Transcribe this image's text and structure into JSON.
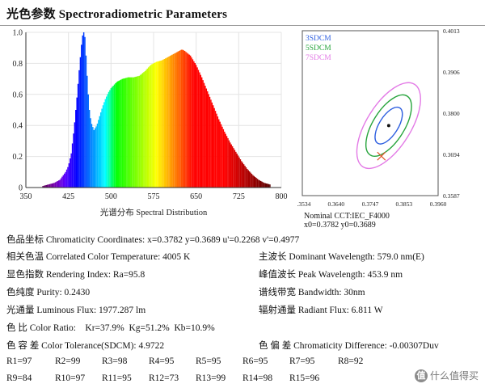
{
  "page": {
    "title": "光色参数 Spectroradiometric Parameters"
  },
  "chart_data": [
    {
      "type": "bar",
      "title": "",
      "xlabel": "光谱分布 Spectral Distribution",
      "ylabel": "",
      "xlim": [
        350,
        800
      ],
      "ylim": [
        0,
        1.0
      ],
      "xticks": [
        "350",
        "425",
        "500",
        "575",
        "650",
        "725",
        "800"
      ],
      "yticks": [
        "0",
        "0.2",
        "0.4",
        "0.6",
        "0.8",
        "1.0"
      ],
      "grid": true,
      "color_map": "wavelength",
      "series": [
        {
          "x": [
            380,
            390,
            400,
            410,
            420,
            425,
            430,
            435,
            440,
            445,
            448,
            450,
            452,
            454,
            456,
            458,
            460,
            462,
            465,
            470,
            475,
            480,
            485,
            490,
            495,
            500,
            510,
            520,
            530,
            540,
            550,
            560,
            570,
            580,
            590,
            600,
            610,
            620,
            625,
            630,
            640,
            650,
            660,
            670,
            680,
            690,
            700,
            710,
            720,
            730,
            740,
            750,
            760,
            770,
            780
          ],
          "values": [
            0.01,
            0.02,
            0.03,
            0.05,
            0.1,
            0.14,
            0.22,
            0.38,
            0.58,
            0.8,
            0.92,
            0.98,
            1.0,
            0.97,
            0.85,
            0.72,
            0.6,
            0.5,
            0.42,
            0.37,
            0.4,
            0.46,
            0.52,
            0.57,
            0.61,
            0.64,
            0.68,
            0.7,
            0.71,
            0.71,
            0.72,
            0.75,
            0.79,
            0.81,
            0.82,
            0.84,
            0.86,
            0.88,
            0.89,
            0.88,
            0.85,
            0.79,
            0.71,
            0.62,
            0.53,
            0.44,
            0.36,
            0.29,
            0.23,
            0.17,
            0.12,
            0.08,
            0.05,
            0.03,
            0.02
          ]
        }
      ]
    },
    {
      "type": "scatter",
      "title": "",
      "x_ticks": [
        "0.3534",
        "0.3640",
        "0.3747",
        "0.3853",
        "0.3960"
      ],
      "y_ticks": [
        "0.4013",
        "0.3906",
        "0.3800",
        "0.3694",
        "0.3587"
      ],
      "xlim": [
        0.3534,
        0.396
      ],
      "ylim": [
        0.3587,
        0.4013
      ],
      "legend": [
        "3SDCM",
        "5SDCM",
        "7SDCM"
      ],
      "legend_position": "top-left",
      "ellipse_colors": [
        "#2e5fe0",
        "#27a43c",
        "#e37be6"
      ],
      "points": [
        {
          "name": "measured",
          "x": 0.3782,
          "y": 0.3689,
          "marker": "cross",
          "color": "#e0552b"
        },
        {
          "name": "nominal",
          "x": 0.3805,
          "y": 0.3768,
          "marker": "dot",
          "color": "#111111"
        }
      ],
      "caption": [
        "Nominal CCT:IEC_F4000",
        "x0=0.3782  y0=0.3689"
      ]
    }
  ],
  "params": {
    "chromaticity": "色品坐标 Chromaticity Coordinates: x=0.3782 y=0.3689 u'=0.2268 v'=0.4977",
    "cct": "相关色温 Correlated Color Temperature: 4005 K",
    "dominant": "主波长 Dominant Wavelength: 579.0 nm(E)",
    "ra": "显色指数 Rendering Index: Ra=95.8",
    "peak": "峰值波长 Peak Wavelength: 453.9 nm",
    "purity": "色纯度 Purity: 0.2430",
    "bandwidth": "谱线带宽 Bandwidth: 30nm",
    "flux": "光通量 Luminous Flux: 1977.287 lm",
    "radiant": "辐射通量 Radiant Flux: 6.811 W",
    "ratio": "色 比 Color Ratio:    Kr=37.9%  Kg=51.2%  Kb=10.9%",
    "tolerance": "色 容 差 Color Tolerance(SDCM): 4.9722",
    "diff": "色 偏 差 Chromaticity Difference: -0.00307Duv"
  },
  "r_values": [
    "R1=97",
    "R2=99",
    "R3=98",
    "R4=95",
    "R5=95",
    "R6=95",
    "R7=95",
    "R8=92",
    "R9=84",
    "R10=97",
    "R11=95",
    "R12=73",
    "R13=99",
    "R14=98",
    "R15=96"
  ],
  "watermark": {
    "badge": "值",
    "text": "什么值得买"
  }
}
